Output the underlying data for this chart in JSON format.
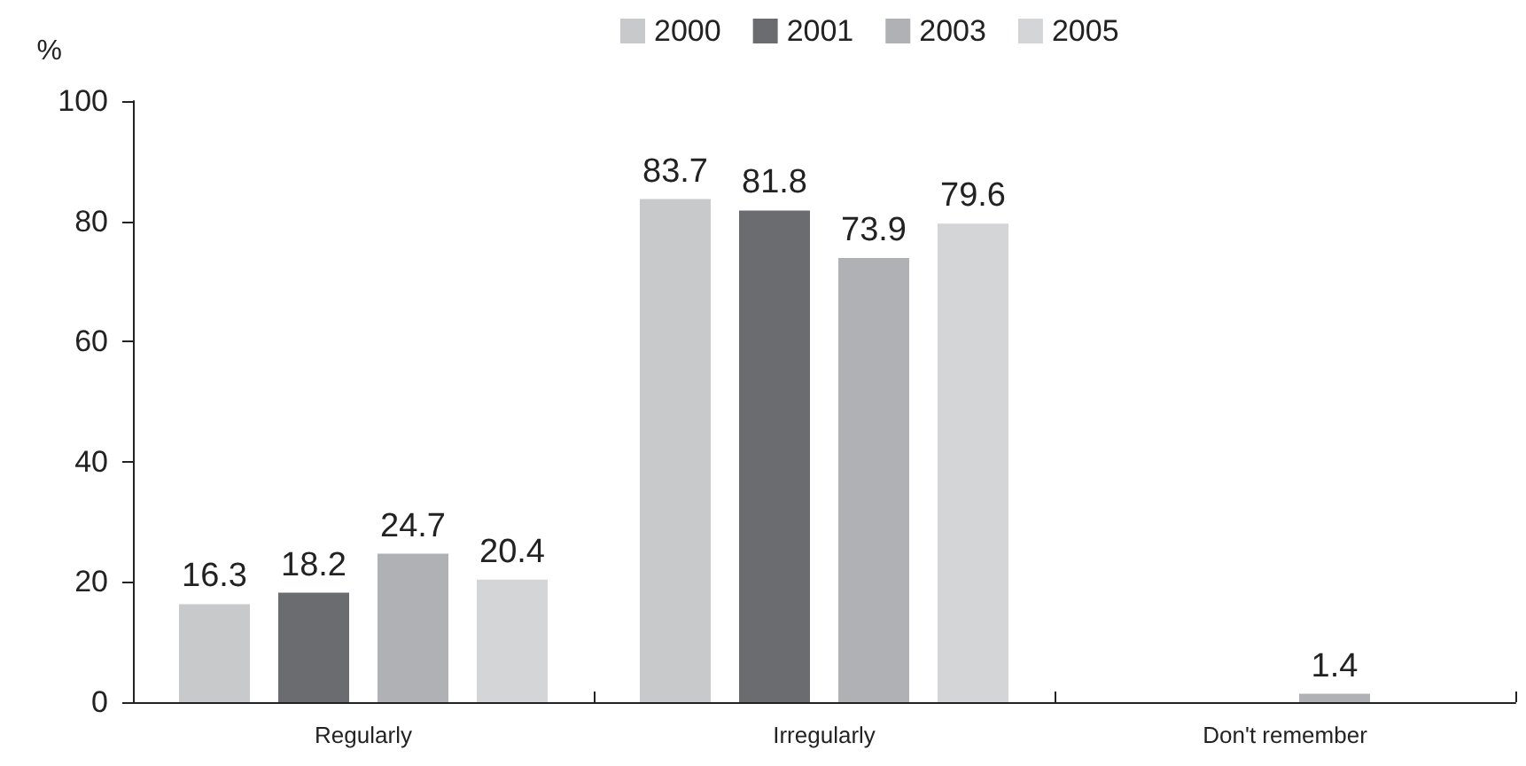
{
  "chart_data": {
    "type": "bar",
    "ylabel": "%",
    "categories": [
      "Regularly",
      "Irregularly",
      "Don't remember"
    ],
    "series": [
      {
        "name": "2000",
        "color": "#c8c9cb",
        "values": [
          16.3,
          83.7,
          null
        ]
      },
      {
        "name": "2001",
        "color": "#6b6c70",
        "values": [
          18.2,
          81.8,
          null
        ]
      },
      {
        "name": "2003",
        "color": "#b0b1b5",
        "values": [
          24.7,
          73.9,
          1.4
        ]
      },
      {
        "name": "2005",
        "color": "#d4d5d7",
        "values": [
          20.4,
          79.6,
          null
        ]
      }
    ],
    "ylim": [
      0,
      100
    ],
    "yticks": [
      0,
      20,
      40,
      60,
      80,
      100
    ],
    "grid": false,
    "legend": "top",
    "data_labels": true
  }
}
